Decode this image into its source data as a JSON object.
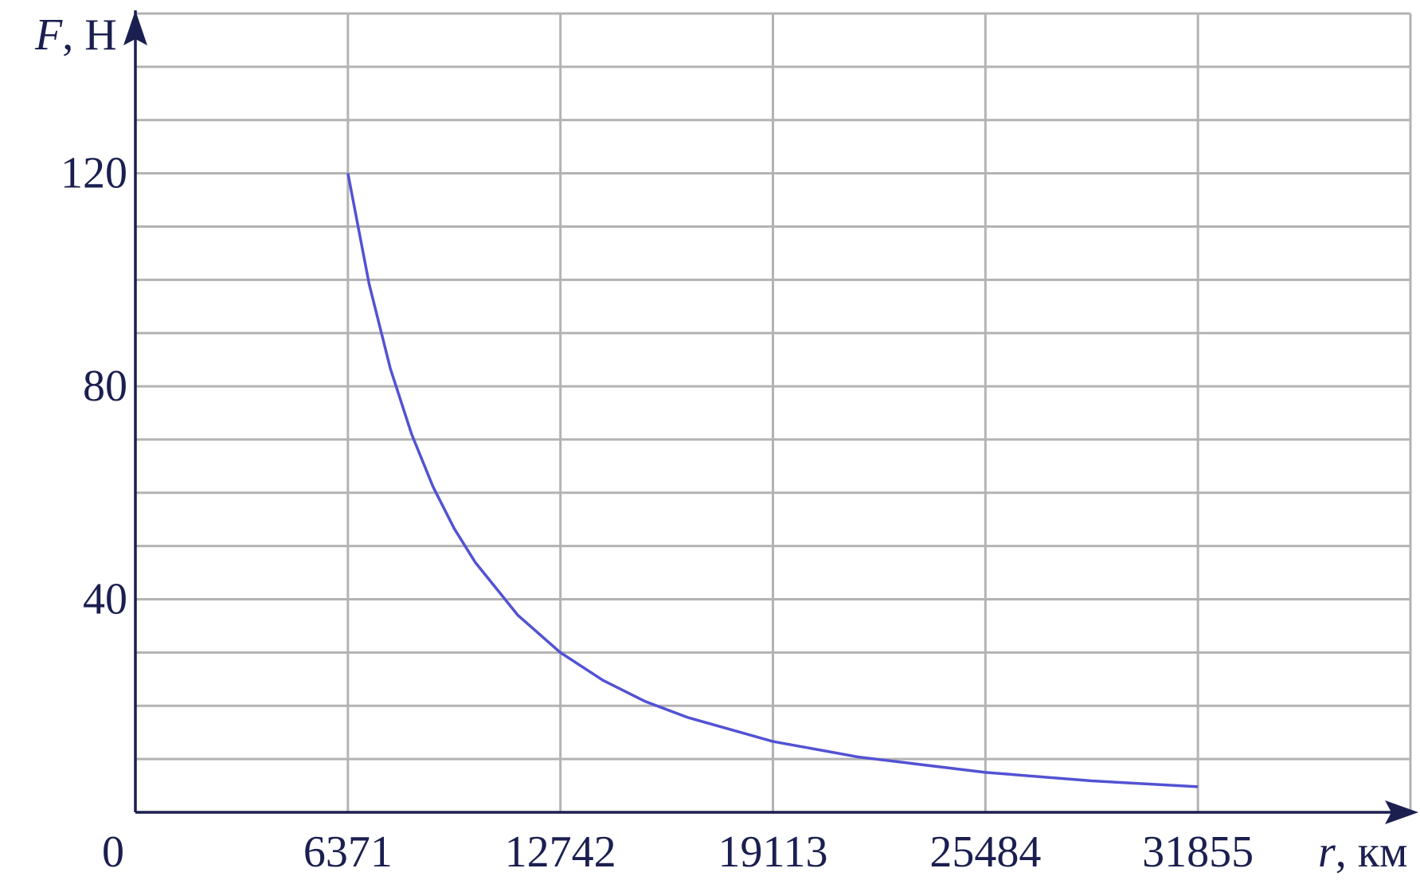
{
  "chart_data": {
    "type": "line",
    "y_label_symbol": "F",
    "y_label_unit": ", Н",
    "x_label_symbol": "r",
    "x_label_unit": ", км",
    "x": [
      6371,
      7008,
      7645,
      8282,
      8919,
      9557,
      10194,
      11468,
      12742,
      14016,
      15291,
      16565,
      19113,
      21661,
      25484,
      28670,
      31855
    ],
    "series": [
      {
        "color": "#5252d4",
        "values": [
          120,
          99.2,
          83.3,
          71.0,
          61.2,
          53.3,
          46.9,
          37.0,
          30,
          24.8,
          20.8,
          17.8,
          13.3,
          10.4,
          7.5,
          5.9,
          4.8
        ]
      }
    ],
    "xlim": [
      0,
      38226
    ],
    "ylim": [
      0,
      150
    ],
    "xticks": [
      0,
      6371,
      12742,
      19113,
      25484,
      31855
    ],
    "yticks": [
      40,
      80,
      120
    ],
    "y_gridlines": [
      10,
      20,
      30,
      40,
      50,
      60,
      70,
      80,
      90,
      100,
      110,
      120,
      130,
      140,
      150
    ],
    "grid": true
  }
}
